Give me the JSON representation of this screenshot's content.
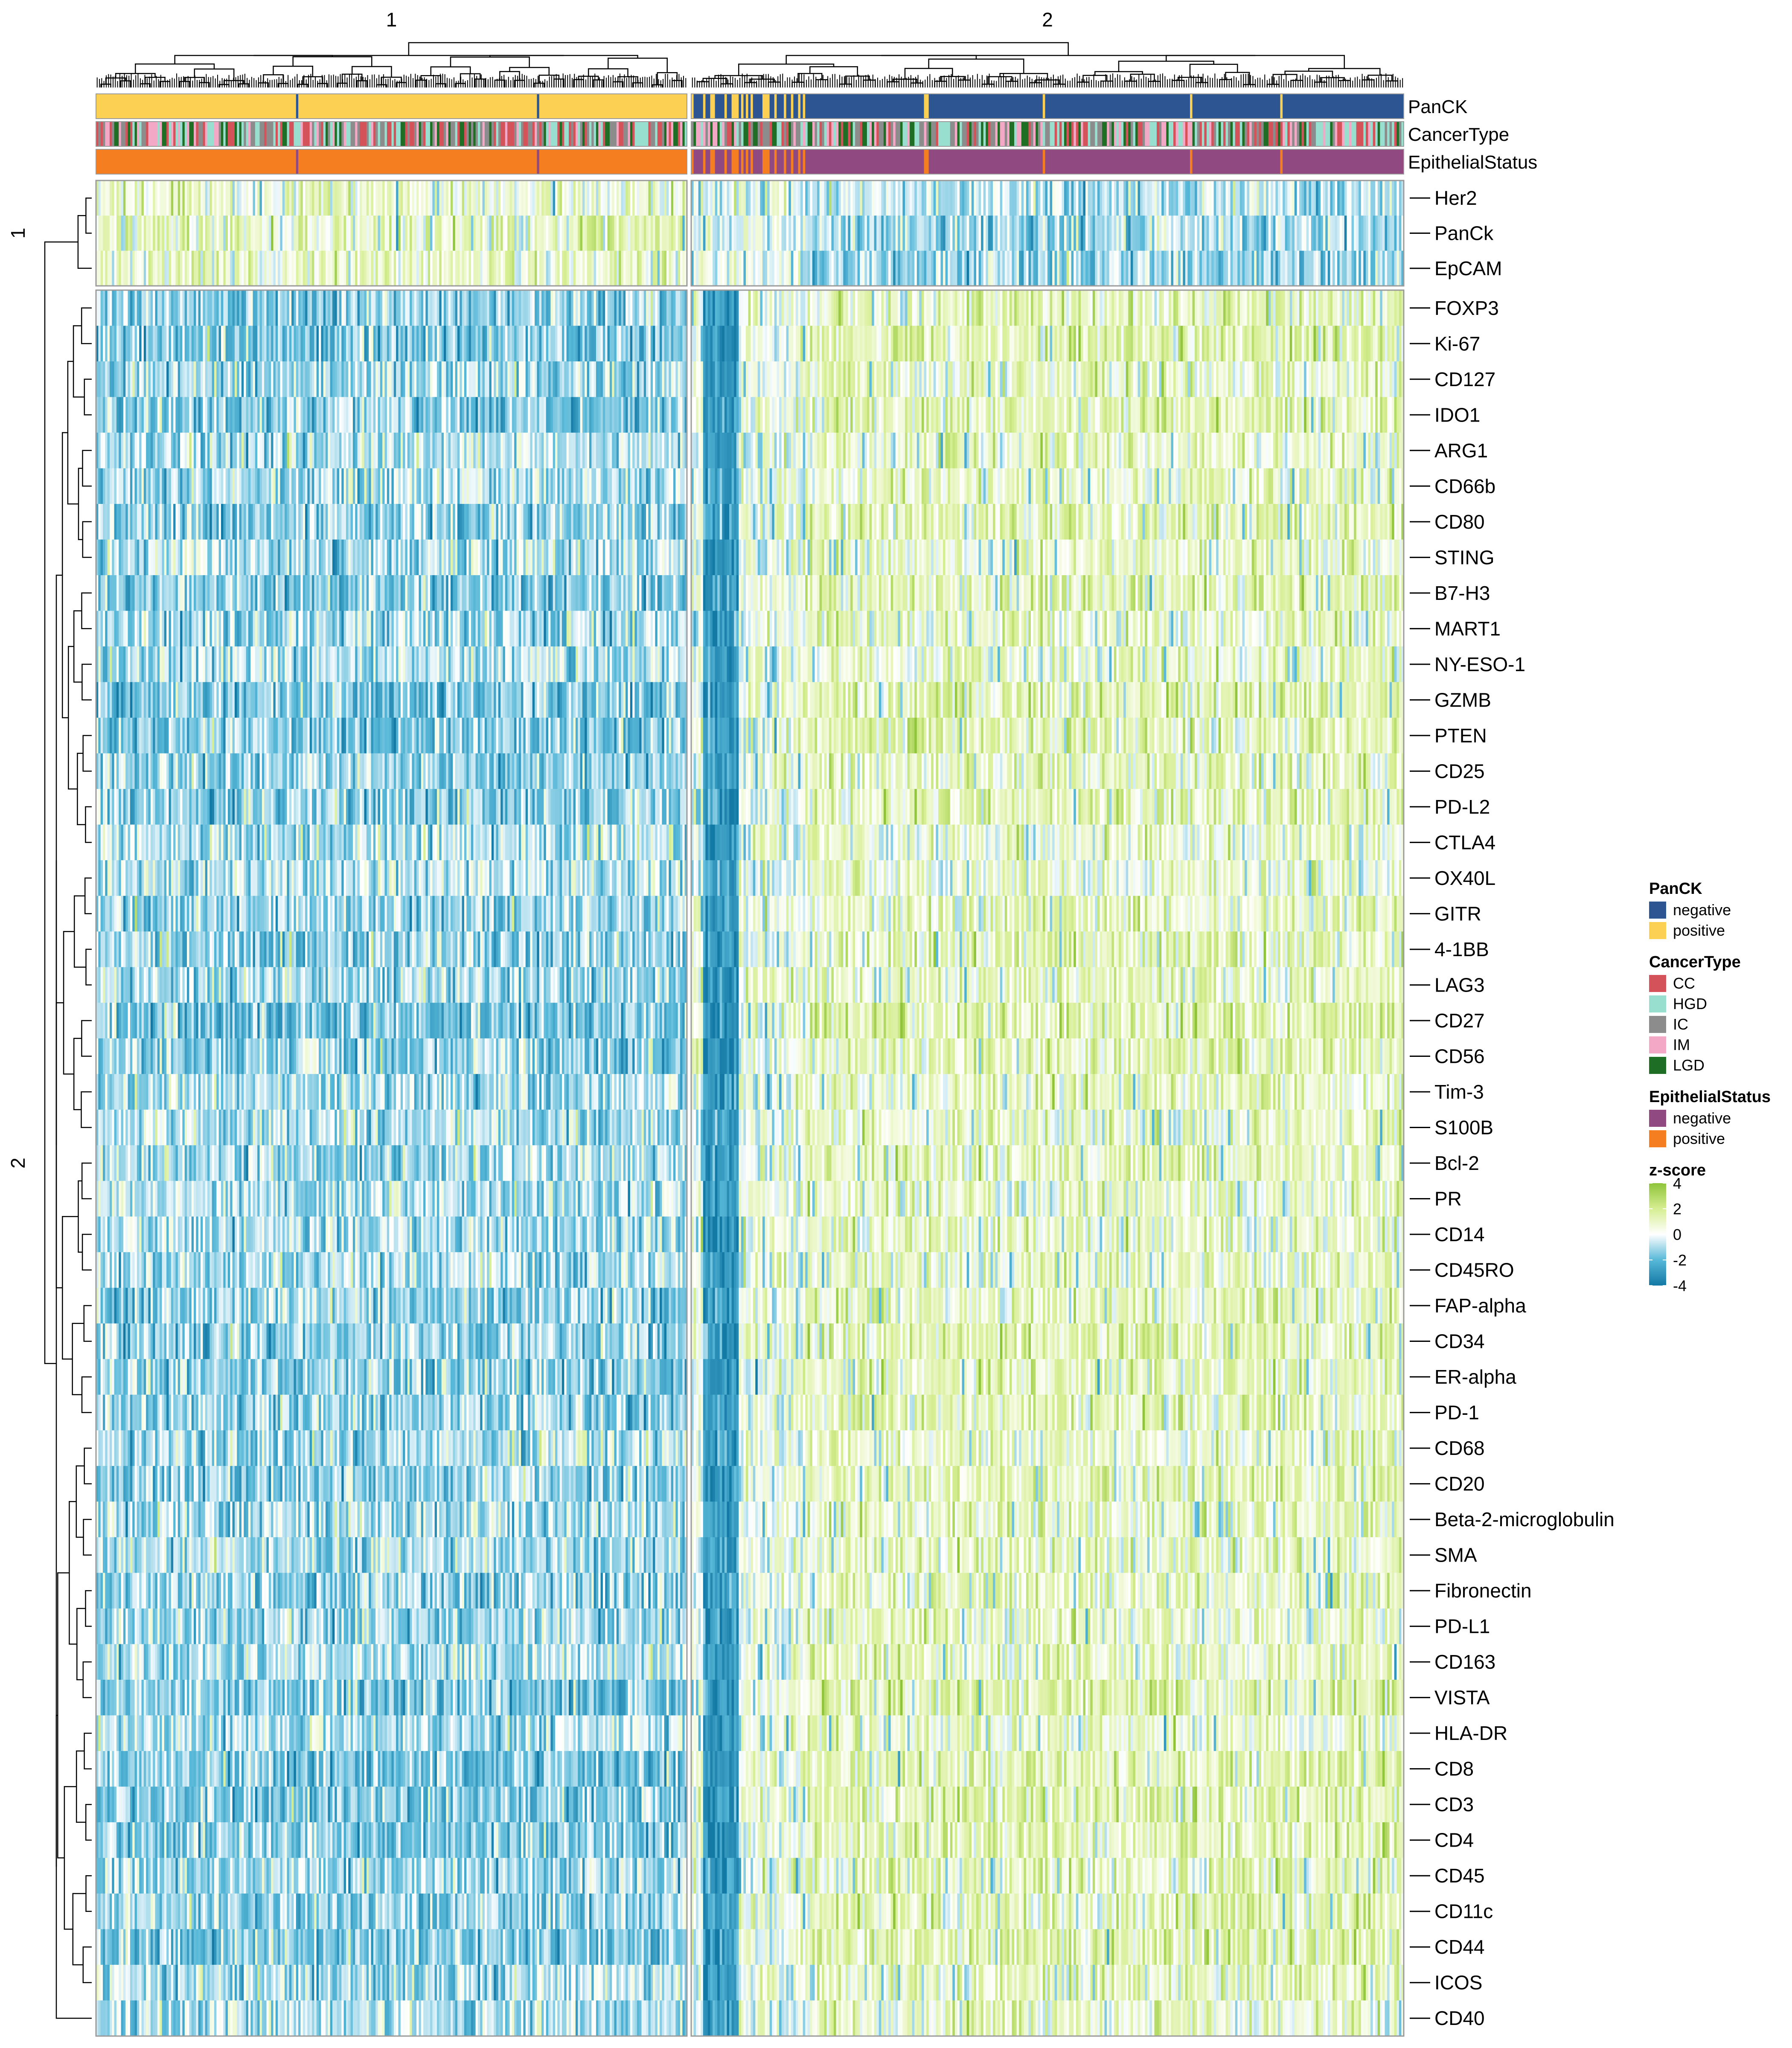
{
  "chart_data": {
    "type": "heatmap",
    "column_split_labels": [
      "1",
      "2"
    ],
    "row_split_labels": [
      "1",
      "2"
    ],
    "annotation_tracks": [
      "PanCK",
      "CancerType",
      "EpithelialStatus"
    ],
    "row_groups": [
      {
        "name": "1",
        "markers": [
          "Her2",
          "PanCk",
          "EpCAM"
        ]
      },
      {
        "name": "2",
        "markers": [
          "FOXP3",
          "Ki-67",
          "CD127",
          "IDO1",
          "ARG1",
          "CD66b",
          "CD80",
          "STING",
          "B7-H3",
          "MART1",
          "NY-ESO-1",
          "GZMB",
          "PTEN",
          "CD25",
          "PD-L2",
          "CTLA4",
          "OX40L",
          "GITR",
          "4-1BB",
          "LAG3",
          "CD27",
          "CD56",
          "Tim-3",
          "S100B",
          "Bcl-2",
          "PR",
          "CD14",
          "CD45RO",
          "FAP-alpha",
          "CD34",
          "ER-alpha",
          "PD-1",
          "CD68",
          "CD20",
          "Beta-2-microglobulin",
          "SMA",
          "Fibronectin",
          "PD-L1",
          "CD163",
          "VISTA",
          "HLA-DR",
          "CD8",
          "CD3",
          "CD4",
          "CD45",
          "CD11c",
          "CD44",
          "ICOS",
          "CD40"
        ]
      }
    ],
    "column_cluster_summary": [
      {
        "cluster": "1",
        "PanCK": "positive",
        "EpithelialStatus": "positive",
        "row_group_1_zscore": 1.0,
        "row_group_2_zscore": -1.2
      },
      {
        "cluster": "2",
        "PanCK": "negative",
        "EpithelialStatus": "negative",
        "row_group_1_zscore": -1.2,
        "row_group_2_zscore": 1.0
      }
    ],
    "legends": [
      {
        "title": "PanCK",
        "items": [
          {
            "label": "negative",
            "color": "#2c5591"
          },
          {
            "label": "positive",
            "color": "#fcd053"
          }
        ]
      },
      {
        "title": "CancerType",
        "items": [
          {
            "label": "CC",
            "color": "#d4525a"
          },
          {
            "label": "HGD",
            "color": "#98dfcf"
          },
          {
            "label": "IC",
            "color": "#8c8c8c"
          },
          {
            "label": "IM",
            "color": "#f3a9c6"
          },
          {
            "label": "LGD",
            "color": "#1f6e25"
          }
        ]
      },
      {
        "title": "EpithelialStatus",
        "items": [
          {
            "label": "negative",
            "color": "#914a81"
          },
          {
            "label": "positive",
            "color": "#f47e20"
          }
        ]
      }
    ],
    "color_scale": {
      "title": "z-score",
      "ticks": [
        "4",
        "2",
        "0",
        "-2",
        "-4"
      ],
      "stops": [
        {
          "value": -4,
          "color": "#1379a5"
        },
        {
          "value": -2,
          "color": "#58b8d8"
        },
        {
          "value": 0,
          "color": "#ffffff"
        },
        {
          "value": 2,
          "color": "#d6ee92"
        },
        {
          "value": 4,
          "color": "#8fc43a"
        }
      ]
    }
  }
}
